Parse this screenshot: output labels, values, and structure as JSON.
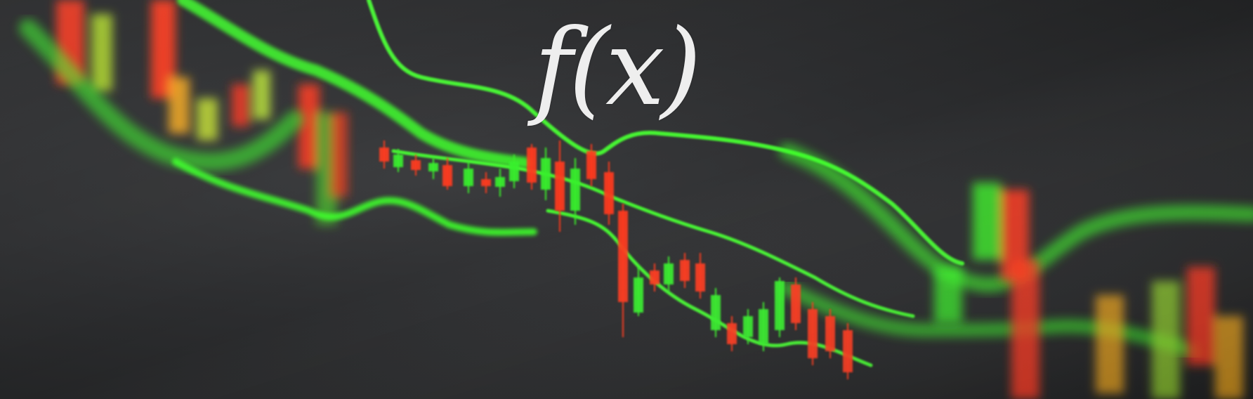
{
  "overlay": {
    "formula": "f(x)"
  },
  "colors": {
    "background": "#2a2b2d",
    "band_green": "#3cff2a",
    "candle_red": "#ff3a1e",
    "candle_green": "#38f02a",
    "text": "#eeeeee"
  }
}
